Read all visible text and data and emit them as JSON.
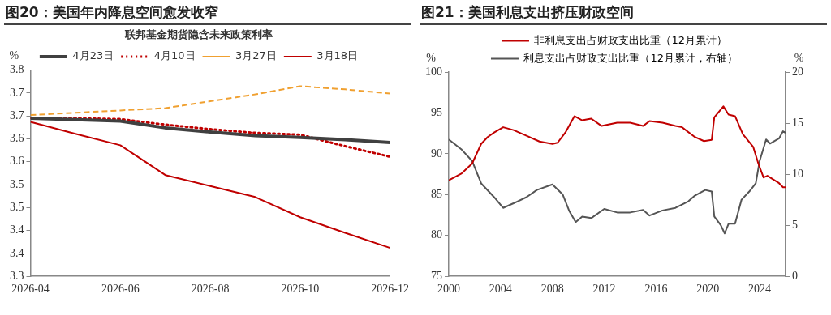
{
  "chart_data": [
    {
      "type": "line",
      "title": "图20：美国年内降息空间愈发收窄",
      "legend_title": "联邦基金期货隐含未来政策利率",
      "ylabel": "%",
      "legend": "top",
      "marker": "none",
      "x": [
        "2026-04",
        "2026-05",
        "2026-06",
        "2026-07",
        "2026-08",
        "2026-09",
        "2026-10",
        "2026-11",
        "2026-12"
      ],
      "xlim": [
        "2026-04",
        "2026-12"
      ],
      "xticks": [
        "2026-04",
        "2026-06",
        "2026-08",
        "2026-10",
        "2026-12"
      ],
      "ylim": [
        3.3,
        3.75
      ],
      "yticks": [
        3.3,
        {
          "value": 3.35,
          "label": "3.4"
        },
        {
          "value": 3.4,
          "label": "3.4"
        },
        {
          "value": 3.45,
          "label": "3.5"
        },
        {
          "value": 3.5,
          "label": "3.5"
        },
        {
          "value": 3.55,
          "label": "3.6"
        },
        {
          "value": 3.6,
          "label": "3.6"
        },
        {
          "value": 3.65,
          "label": "3.7"
        },
        {
          "value": 3.7,
          "label": "3.7"
        },
        {
          "value": 3.75,
          "label": "3.8"
        }
      ],
      "series": [
        {
          "name": "4月23日",
          "color": "#404040",
          "line_style": "solid",
          "values": [
            3.645,
            3.642,
            3.639,
            3.624,
            3.615,
            3.607,
            3.603,
            3.598,
            3.592
          ]
        },
        {
          "name": "4月10日",
          "color": "#c00000",
          "line_style": "dotted",
          "values": [
            3.646,
            3.645,
            3.643,
            3.631,
            3.621,
            3.613,
            3.609,
            3.584,
            3.561
          ]
        },
        {
          "name": "3月27日",
          "color": "#f0a030",
          "line_style": "dashed",
          "values": [
            3.652,
            3.657,
            3.662,
            3.667,
            3.682,
            3.697,
            3.715,
            3.708,
            3.699
          ]
        },
        {
          "name": "3月18日",
          "color": "#c00000",
          "line_style": "solid",
          "values": [
            3.637,
            3.611,
            3.586,
            3.521,
            3.497,
            3.473,
            3.429,
            3.395,
            3.362
          ]
        }
      ]
    },
    {
      "type": "line",
      "title": "图21：美国利息支出挤压财政空间",
      "ylabel": "%",
      "y2label": "%",
      "legend": "top",
      "marker": "none",
      "xlim": [
        2000,
        2026
      ],
      "xticks": [
        2000,
        2004,
        2008,
        2012,
        2016,
        2020,
        2024
      ],
      "ylim": [
        75,
        100
      ],
      "yticks": [
        75,
        80,
        85,
        90,
        95,
        100
      ],
      "y2lim": [
        0,
        20
      ],
      "y2ticks": [
        0,
        5,
        10,
        15,
        20
      ],
      "series": [
        {
          "name": "非利息支出占财政支出比重（12月累计）",
          "color": "#c00000",
          "line_style": "solid",
          "x": [
            2000,
            2001,
            2001.8,
            2002.5,
            2003,
            2003.5,
            2004.2,
            2005,
            2006,
            2007,
            2008,
            2008.4,
            2009,
            2009.7,
            2010.3,
            2011,
            2011.8,
            2013,
            2014,
            2015,
            2015.5,
            2016.5,
            2017.5,
            2018,
            2019,
            2019.7,
            2020.3,
            2020.5,
            2021.2,
            2021.6,
            2022.1,
            2022.7,
            2023.5,
            2023.9,
            2024.3,
            2024.6,
            2025.5,
            2025.8,
            2026
          ],
          "values": [
            86.75,
            87.6,
            88.8,
            91.2,
            92.05,
            92.6,
            93.25,
            92.9,
            92.2,
            91.5,
            91.2,
            91.35,
            92.6,
            94.6,
            94.1,
            94.3,
            93.4,
            93.8,
            93.8,
            93.4,
            94.0,
            93.8,
            93.4,
            93.25,
            92.05,
            91.55,
            91.7,
            94.45,
            95.8,
            94.8,
            94.6,
            92.4,
            90.85,
            88.8,
            87.1,
            87.3,
            86.4,
            85.9,
            85.9
          ]
        },
        {
          "name": "利息支出占财政支出比重（12月累计，右轴）",
          "color": "#555555",
          "line_style": "solid",
          "axis": "y2",
          "x": [
            2000,
            2001,
            2001.8,
            2002.5,
            2003.5,
            2004.2,
            2005,
            2006,
            2006.8,
            2008,
            2008.8,
            2009.3,
            2009.8,
            2010.3,
            2011,
            2012,
            2013,
            2014,
            2015,
            2015.5,
            2016.5,
            2017.5,
            2018.5,
            2019,
            2019.8,
            2020.3,
            2020.5,
            2021,
            2021.3,
            2021.6,
            2022.1,
            2022.6,
            2023.2,
            2023.7,
            2024,
            2024.5,
            2024.8,
            2025.5,
            2025.8,
            2026
          ],
          "values": [
            13.4,
            12.4,
            11.3,
            9.1,
            7.75,
            6.7,
            7.15,
            7.75,
            8.45,
            9.0,
            8.0,
            6.4,
            5.3,
            5.85,
            5.7,
            6.6,
            6.25,
            6.25,
            6.5,
            5.95,
            6.45,
            6.7,
            7.35,
            7.9,
            8.45,
            8.3,
            5.85,
            5.0,
            4.2,
            5.15,
            5.15,
            7.5,
            8.3,
            9.1,
            11.3,
            13.4,
            13.0,
            13.5,
            14.2,
            14.05
          ]
        }
      ]
    }
  ]
}
